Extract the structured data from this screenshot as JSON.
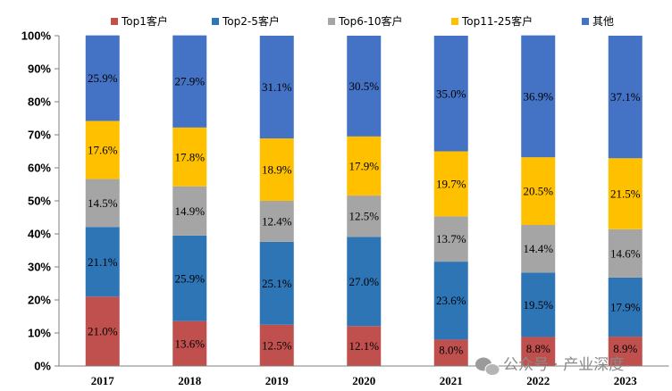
{
  "chart_data": {
    "type": "bar",
    "stacked": true,
    "categories": [
      "2017",
      "2018",
      "2019",
      "2020",
      "2021",
      "2022",
      "2023"
    ],
    "series": [
      {
        "name": "Top1客户",
        "color": "#c0504d",
        "values": [
          21.0,
          13.6,
          12.5,
          12.1,
          8.0,
          8.8,
          8.9
        ]
      },
      {
        "name": "Top2-5客户",
        "color": "#2e75b6",
        "values": [
          21.1,
          25.9,
          25.1,
          27.0,
          23.6,
          19.5,
          17.9
        ]
      },
      {
        "name": "Top6-10客户",
        "color": "#a5a5a5",
        "values": [
          14.5,
          14.9,
          12.4,
          12.5,
          13.7,
          14.4,
          14.6
        ]
      },
      {
        "name": "Top11-25客户",
        "color": "#ffc000",
        "values": [
          17.6,
          17.8,
          18.9,
          17.9,
          19.7,
          20.5,
          21.5
        ]
      },
      {
        "name": "其他",
        "color": "#4472c4",
        "values": [
          25.9,
          27.9,
          31.1,
          30.5,
          35.0,
          36.9,
          37.1
        ]
      }
    ],
    "yticks": [
      "0%",
      "10%",
      "20%",
      "30%",
      "40%",
      "50%",
      "60%",
      "70%",
      "80%",
      "90%",
      "100%"
    ],
    "ylim": [
      0,
      100
    ],
    "legend_position": "top"
  },
  "watermark": "公众号 · 产业深度"
}
